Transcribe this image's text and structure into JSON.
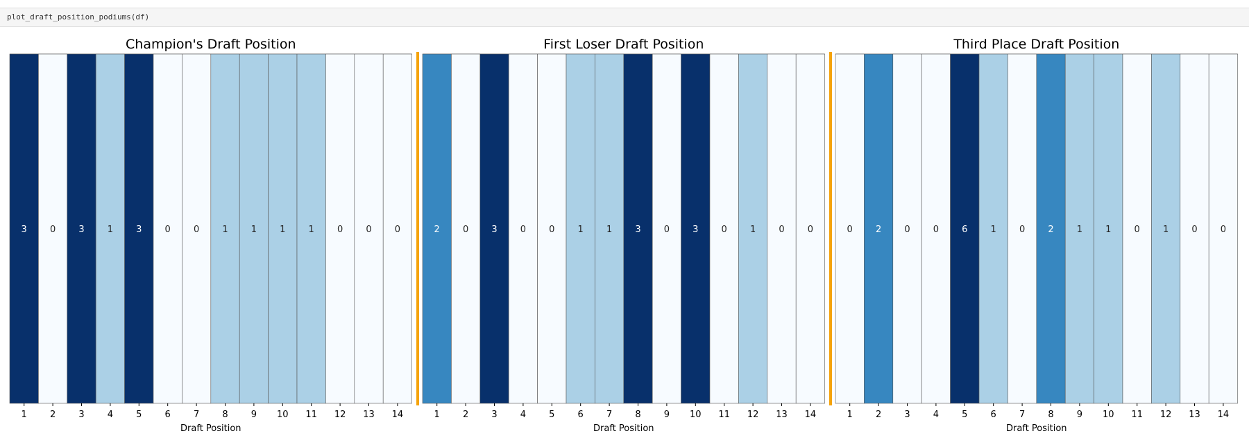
{
  "cell": {
    "code": "plot_draft_position_podiums(df)"
  },
  "chart_data": [
    {
      "type": "heatmap",
      "title": "Champion's Draft Position",
      "xlabel": "Draft Position",
      "categories": [
        "1",
        "2",
        "3",
        "4",
        "5",
        "6",
        "7",
        "8",
        "9",
        "10",
        "11",
        "12",
        "13",
        "14"
      ],
      "values": [
        3,
        0,
        3,
        1,
        3,
        0,
        0,
        1,
        1,
        1,
        1,
        0,
        0,
        0
      ]
    },
    {
      "type": "heatmap",
      "title": "First Loser Draft Position",
      "xlabel": "Draft Position",
      "categories": [
        "1",
        "2",
        "3",
        "4",
        "5",
        "6",
        "7",
        "8",
        "9",
        "10",
        "11",
        "12",
        "13",
        "14"
      ],
      "values": [
        2,
        0,
        3,
        0,
        0,
        1,
        1,
        3,
        0,
        3,
        0,
        1,
        0,
        0
      ]
    },
    {
      "type": "heatmap",
      "title": "Third Place Draft Position",
      "xlabel": "Draft Position",
      "categories": [
        "1",
        "2",
        "3",
        "4",
        "5",
        "6",
        "7",
        "8",
        "9",
        "10",
        "11",
        "12",
        "13",
        "14"
      ],
      "values": [
        0,
        2,
        0,
        0,
        6,
        1,
        0,
        2,
        1,
        1,
        0,
        1,
        0,
        0
      ]
    }
  ],
  "colors": {
    "separator": "#f5a30a",
    "cell_border": "#555555",
    "cmap": "Blues"
  }
}
